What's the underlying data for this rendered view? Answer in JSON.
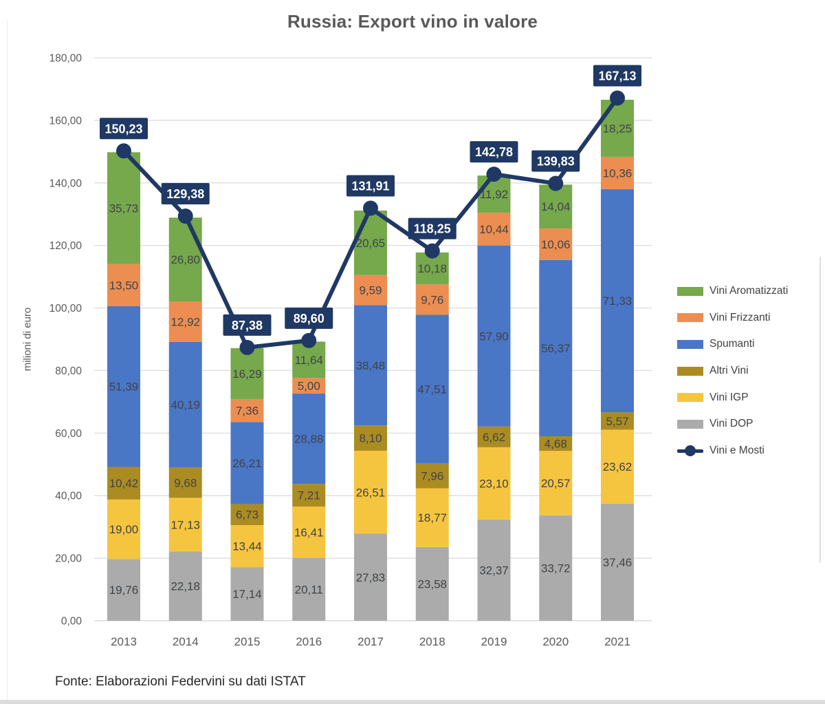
{
  "title": "Russia: Export vino in valore",
  "source": "Fonte: Elaborazioni Federvini su dati ISTAT",
  "colors": {
    "aromatizzati": "#76A84C",
    "frizzanti": "#EC8E51",
    "spumanti": "#4A76C6",
    "altri_vini": "#AB8C22",
    "igp": "#F6C53F",
    "dop": "#ABABAB",
    "line": "#1F3864",
    "gridline": "#D9D9D9",
    "axis_text": "#595959",
    "bar_label_text": "#3F4347",
    "total_label_bg": "#1F3864",
    "total_label_text": "#FFFFFF"
  },
  "chart_data": {
    "type": "combo_stacked_bar_line",
    "title": "Russia: Export vino in valore",
    "xlabel": "",
    "ylabel": "milioni di euro",
    "ylim": [
      0,
      180
    ],
    "ytick_step": 20,
    "grid": "horizontal",
    "legend_position": "right",
    "yticks": [
      "180,00",
      "160,00",
      "140,00",
      "120,00",
      "100,00",
      "80,00",
      "60,00",
      "40,00",
      "20,00",
      "0,00"
    ],
    "categories": [
      "2013",
      "2014",
      "2015",
      "2016",
      "2017",
      "2018",
      "2019",
      "2020",
      "2021"
    ],
    "bar_series": [
      {
        "name": "Vini DOP",
        "color": "#ABABAB",
        "values": [
          "19,76",
          "22,18",
          "17,14",
          "20,11",
          "27,83",
          "23,58",
          "32,37",
          "33,72",
          "37,46"
        ]
      },
      {
        "name": "Vini IGP",
        "color": "#F6C53F",
        "values": [
          "19,00",
          "17,13",
          "13,44",
          "16,41",
          "26,51",
          "18,77",
          "23,10",
          "20,57",
          "23,62"
        ]
      },
      {
        "name": "Altri Vini",
        "color": "#AB8C22",
        "values": [
          "10,42",
          "9,68",
          "6,73",
          "7,21",
          "8,10",
          "7,96",
          "6,62",
          "4,68",
          "5,57"
        ]
      },
      {
        "name": "Spumanti",
        "color": "#4A76C6",
        "values": [
          "51,39",
          "40,19",
          "26,21",
          "28,88",
          "38,48",
          "47,51",
          "57,90",
          "56,37",
          "71,33"
        ]
      },
      {
        "name": "Vini Frizzanti",
        "color": "#EC8E51",
        "values": [
          "13,50",
          "12,92",
          "7,36",
          "5,00",
          "9,59",
          "9,76",
          "10,44",
          "10,06",
          "10,36"
        ]
      },
      {
        "name": "Vini Aromatizzati",
        "color": "#76A84C",
        "values": [
          "35,73",
          "26,80",
          "16,29",
          "11,64",
          "20,65",
          "10,18",
          "11,92",
          "14,04",
          "18,25"
        ]
      }
    ],
    "line_series": {
      "name": "Vini e Mosti",
      "color": "#1F3864",
      "values": [
        "150,23",
        "129,38",
        "87,38",
        "89,60",
        "131,91",
        "118,25",
        "142,78",
        "139,83",
        "167,13"
      ]
    },
    "legend": [
      {
        "label": "Vini Aromatizzati",
        "type": "box",
        "color": "#76A84C"
      },
      {
        "label": "Vini Frizzanti",
        "type": "box",
        "color": "#EC8E51"
      },
      {
        "label": "Spumanti",
        "type": "box",
        "color": "#4A76C6"
      },
      {
        "label": "Altri Vini",
        "type": "box",
        "color": "#AB8C22"
      },
      {
        "label": "Vini IGP",
        "type": "box",
        "color": "#F6C53F"
      },
      {
        "label": "Vini DOP",
        "type": "box",
        "color": "#ABABAB"
      },
      {
        "label": "Vini e Mosti",
        "type": "line",
        "color": "#1F3864"
      }
    ]
  }
}
